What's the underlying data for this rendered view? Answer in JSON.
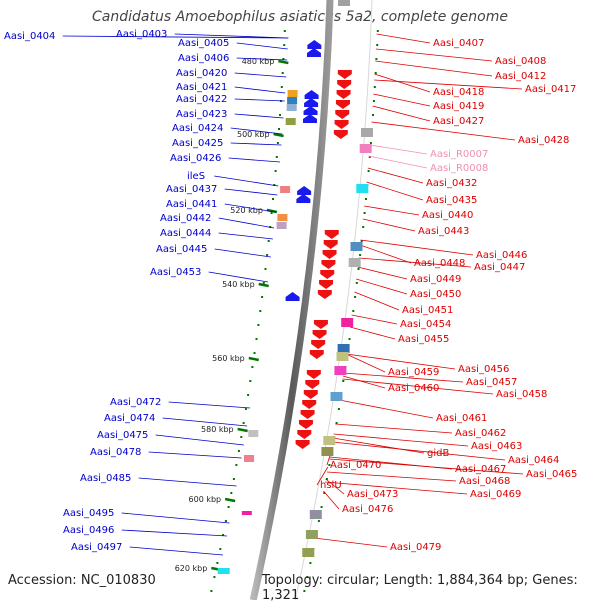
{
  "title": "Candidatus Amoebophilus asiaticus 5a2, complete genome",
  "accession": "Accession: NC_010830",
  "topology": "Topology: circular; Length: 1,884,364 bp; Genes: 1,321",
  "colors": {
    "left_label": "#0000cc",
    "right_label": "#dd0000",
    "rna_label": "#f090b0",
    "tick": "#007700",
    "backbone": "#808080"
  },
  "kbp_ticks": [
    "480 kbp",
    "500 kbp",
    "520 kbp",
    "540 kbp",
    "560 kbp",
    "580 kbp",
    "600 kbp",
    "620 kbp"
  ],
  "left_genes": [
    "Aasi_0404",
    "Aasi_0403",
    "Aasi_0405",
    "Aasi_0406",
    "Aasi_0420",
    "Aasi_0421",
    "Aasi_0422",
    "Aasi_0423",
    "Aasi_0424",
    "Aasi_0425",
    "Aasi_0426",
    "ileS",
    "Aasi_0437",
    "Aasi_0441",
    "Aasi_0442",
    "Aasi_0444",
    "Aasi_0445",
    "Aasi_0453",
    "Aasi_0472",
    "Aasi_0474",
    "Aasi_0475",
    "Aasi_0478",
    "Aasi_0485",
    "Aasi_0495",
    "Aasi_0496",
    "Aasi_0497"
  ],
  "right_genes": [
    "Aasi_0407",
    "Aasi_0408",
    "Aasi_0412",
    "Aasi_0418",
    "Aasi_0417",
    "Aasi_0419",
    "Aasi_0427",
    "Aasi_0428",
    "Aasi_R0007",
    "Aasi_R0008",
    "Aasi_0432",
    "Aasi_0435",
    "Aasi_0440",
    "Aasi_0443",
    "Aasi_0446",
    "Aasi_0448",
    "Aasi_0447",
    "Aasi_0449",
    "Aasi_0450",
    "Aasi_0451",
    "Aasi_0454",
    "Aasi_0455",
    "Aasi_0456",
    "Aasi_0459",
    "Aasi_0457",
    "Aasi_0460",
    "Aasi_0458",
    "Aasi_0461",
    "Aasi_0462",
    "Aasi_0463",
    "gidB",
    "Aasi_0464",
    "Aasi_0470",
    "Aasi_0467",
    "Aasi_0465",
    "hslU",
    "Aasi_0468",
    "Aasi_0469",
    "Aasi_0473",
    "Aasi_0476",
    "Aasi_0479"
  ]
}
